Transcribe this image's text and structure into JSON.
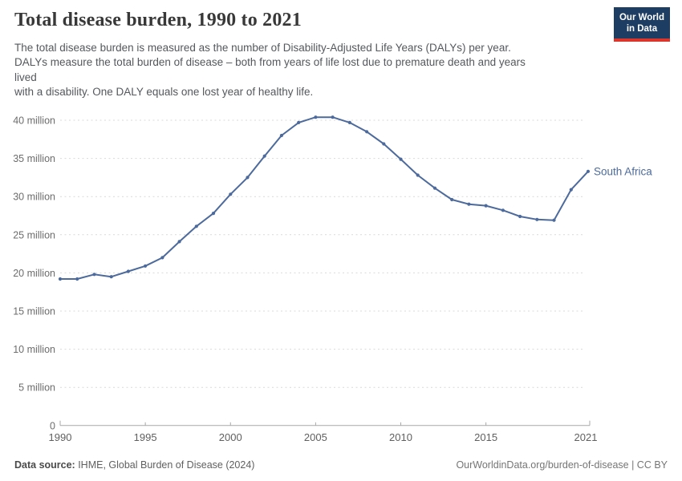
{
  "header": {
    "title": "Total disease burden, 1990 to 2021",
    "subtitle_text": "The total disease burden is measured as the number of Disability-Adjusted Life Years (DALYs) per year.\nDALYs measure the total burden of disease – both from years of life lost due to premature death and years\nlived\nwith a disability. One DALY equals one lost year of healthy life.",
    "logo": {
      "line1": "Our World",
      "line2": "in Data",
      "bg_color": "#1d3d63",
      "accent_color": "#dc352b"
    }
  },
  "chart_data": {
    "type": "line",
    "title": "Total disease burden, 1990 to 2021",
    "xlabel": "",
    "ylabel": "Disability-Adjusted Life Years (DALYs) per year",
    "x": [
      1990,
      1991,
      1992,
      1993,
      1994,
      1995,
      1996,
      1997,
      1998,
      1999,
      2000,
      2001,
      2002,
      2003,
      2004,
      2005,
      2006,
      2007,
      2008,
      2009,
      2010,
      2011,
      2012,
      2013,
      2014,
      2015,
      2016,
      2017,
      2018,
      2019,
      2020,
      2021
    ],
    "series": [
      {
        "name": "South Africa",
        "color": "#4c6a9c",
        "values_millions": [
          19.2,
          19.2,
          19.8,
          19.5,
          20.2,
          20.9,
          22.0,
          24.1,
          26.1,
          27.8,
          30.3,
          32.5,
          35.3,
          38.0,
          39.7,
          40.4,
          40.4,
          39.7,
          38.5,
          36.9,
          34.9,
          32.8,
          31.1,
          29.6,
          29.0,
          28.8,
          28.2,
          27.4,
          27.0,
          26.9,
          30.9,
          33.3
        ]
      }
    ],
    "ylim_millions": [
      0,
      40
    ],
    "yticks": [
      {
        "value": 0,
        "label": "0"
      },
      {
        "value": 5,
        "label": "5 million"
      },
      {
        "value": 10,
        "label": "10 million"
      },
      {
        "value": 15,
        "label": "15 million"
      },
      {
        "value": 20,
        "label": "20 million"
      },
      {
        "value": 25,
        "label": "25 million"
      },
      {
        "value": 30,
        "label": "30 million"
      },
      {
        "value": 35,
        "label": "35 million"
      },
      {
        "value": 40,
        "label": "40 million"
      }
    ],
    "xticks": [
      1990,
      1995,
      2000,
      2005,
      2010,
      2015,
      2021
    ],
    "grid": "horizontal-dashed",
    "legend_position": "end-of-line"
  },
  "footer": {
    "datasource_label": "Data source:",
    "datasource_value": " IHME, Global Burden of Disease (2024)",
    "right_text": "OurWorldinData.org/burden-of-disease | CC BY"
  }
}
